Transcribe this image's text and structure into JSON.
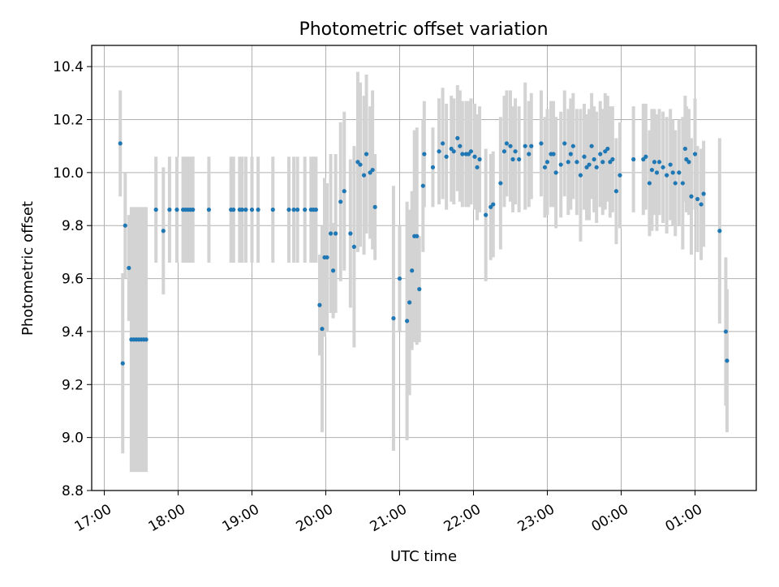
{
  "chart_data": {
    "type": "scatter",
    "title": "Photometric offset variation",
    "xlabel": "UTC time",
    "ylabel": "Photometric offset",
    "xlim": [
      "17:00",
      "01:50"
    ],
    "ylim": [
      8.8,
      10.48
    ],
    "x_ticks": [
      "17:00",
      "18:00",
      "19:00",
      "20:00",
      "21:00",
      "22:00",
      "23:00",
      "00:00",
      "01:00"
    ],
    "y_ticks": [
      "8.8",
      "9.0",
      "9.2",
      "9.4",
      "9.6",
      "9.8",
      "10.0",
      "10.2",
      "10.4"
    ],
    "grid": true,
    "point_color": "#1f77b4",
    "errorbar_color": "#d3d3d3",
    "series": [
      {
        "x": [
          "17:13",
          "17:15",
          "17:17",
          "17:20",
          "17:22",
          "17:24",
          "17:26",
          "17:28",
          "17:30",
          "17:32",
          "17:34",
          "17:42",
          "17:48",
          "17:53",
          "17:59",
          "18:04",
          "18:06",
          "18:08",
          "18:10",
          "18:12",
          "18:25",
          "18:43",
          "18:45",
          "18:50",
          "18:52",
          "18:55",
          "19:00",
          "19:05",
          "19:17",
          "19:30",
          "19:34",
          "19:37",
          "19:43",
          "19:48",
          "19:50",
          "19:52",
          "19:55",
          "19:57",
          "19:59",
          "20:01",
          "20:04",
          "20:06",
          "20:08",
          "20:12",
          "20:15",
          "20:20",
          "20:23",
          "20:26",
          "20:28",
          "20:31",
          "20:33",
          "20:36",
          "20:38",
          "20:40",
          "20:55",
          "21:00",
          "21:06",
          "21:08",
          "21:10",
          "21:12",
          "21:14",
          "21:16",
          "21:19",
          "21:20",
          "21:27",
          "21:32",
          "21:35",
          "21:38",
          "21:42",
          "21:44",
          "21:47",
          "21:49",
          "21:51",
          "21:54",
          "21:56",
          "21:58",
          "22:01",
          "22:03",
          "22:05",
          "22:10",
          "22:14",
          "22:16",
          "22:22",
          "22:25",
          "22:27",
          "22:30",
          "22:32",
          "22:34",
          "22:37",
          "22:42",
          "22:45",
          "22:47",
          "22:55",
          "22:58",
          "23:00",
          "23:03",
          "23:05",
          "23:07",
          "23:11",
          "23:14",
          "23:17",
          "23:19",
          "23:21",
          "23:24",
          "23:27",
          "23:30",
          "23:32",
          "23:34",
          "23:36",
          "23:38",
          "23:40",
          "23:43",
          "23:45",
          "23:47",
          "23:49",
          "23:51",
          "23:53",
          "23:56",
          "23:59",
          "00:10",
          "00:18",
          "00:20",
          "00:23",
          "00:25",
          "00:27",
          "00:29",
          "00:31",
          "00:34",
          "00:37",
          "00:40",
          "00:42",
          "00:44",
          "00:47",
          "00:50",
          "00:52",
          "00:53",
          "00:55",
          "00:57",
          "01:00",
          "01:02",
          "01:05",
          "01:07",
          "01:20",
          "01:25",
          "01:26"
        ],
        "y": [
          10.11,
          9.28,
          9.8,
          9.64,
          9.37,
          9.37,
          9.37,
          9.37,
          9.37,
          9.37,
          9.37,
          9.86,
          9.78,
          9.86,
          9.86,
          9.86,
          9.86,
          9.86,
          9.86,
          9.86,
          9.86,
          9.86,
          9.86,
          9.86,
          9.86,
          9.86,
          9.86,
          9.86,
          9.86,
          9.86,
          9.86,
          9.86,
          9.86,
          9.86,
          9.86,
          9.86,
          9.5,
          9.41,
          9.68,
          9.68,
          9.77,
          9.63,
          9.77,
          9.89,
          9.93,
          9.77,
          9.72,
          10.04,
          10.03,
          9.99,
          10.07,
          10.0,
          10.01,
          9.87,
          9.45,
          9.6,
          9.44,
          9.51,
          9.63,
          9.76,
          9.76,
          9.56,
          9.95,
          10.07,
          10.02,
          10.08,
          10.11,
          10.06,
          10.09,
          10.08,
          10.13,
          10.1,
          10.07,
          10.07,
          10.07,
          10.08,
          10.06,
          10.02,
          10.05,
          9.84,
          9.87,
          9.88,
          9.96,
          10.08,
          10.11,
          10.1,
          10.05,
          10.08,
          10.05,
          10.1,
          10.07,
          10.1,
          10.11,
          10.02,
          10.04,
          10.07,
          10.07,
          10.0,
          10.03,
          10.11,
          10.04,
          10.07,
          10.1,
          10.04,
          9.99,
          10.06,
          10.02,
          10.03,
          10.1,
          10.05,
          10.02,
          10.07,
          10.04,
          10.08,
          10.09,
          10.04,
          10.05,
          9.93,
          9.99,
          10.05,
          10.05,
          10.06,
          9.96,
          10.01,
          10.04,
          10.0,
          10.04,
          10.02,
          9.99,
          10.03,
          10.0,
          9.96,
          10.0,
          9.96,
          10.09,
          10.05,
          10.04,
          9.91,
          10.07,
          9.9,
          9.88,
          9.92,
          9.78,
          9.4,
          9.29
        ],
        "err": [
          0.2,
          0.34,
          0.2,
          0.2,
          0.5,
          0.5,
          0.5,
          0.5,
          0.5,
          0.5,
          0.5,
          0.2,
          0.24,
          0.2,
          0.2,
          0.2,
          0.2,
          0.2,
          0.2,
          0.2,
          0.2,
          0.2,
          0.2,
          0.2,
          0.2,
          0.2,
          0.2,
          0.2,
          0.2,
          0.2,
          0.2,
          0.2,
          0.2,
          0.2,
          0.2,
          0.2,
          0.19,
          0.39,
          0.3,
          0.28,
          0.3,
          0.18,
          0.3,
          0.3,
          0.3,
          0.28,
          0.38,
          0.34,
          0.31,
          0.3,
          0.3,
          0.25,
          0.3,
          0.2,
          0.5,
          0.2,
          0.45,
          0.35,
          0.3,
          0.4,
          0.41,
          0.2,
          0.25,
          0.2,
          0.15,
          0.2,
          0.21,
          0.2,
          0.2,
          0.2,
          0.2,
          0.21,
          0.2,
          0.2,
          0.2,
          0.2,
          0.2,
          0.2,
          0.2,
          0.25,
          0.2,
          0.2,
          0.25,
          0.21,
          0.2,
          0.21,
          0.2,
          0.2,
          0.2,
          0.24,
          0.2,
          0.2,
          0.2,
          0.19,
          0.2,
          0.2,
          0.2,
          0.21,
          0.2,
          0.2,
          0.2,
          0.21,
          0.2,
          0.2,
          0.25,
          0.2,
          0.2,
          0.21,
          0.2,
          0.2,
          0.21,
          0.2,
          0.2,
          0.22,
          0.2,
          0.21,
          0.2,
          0.2,
          0.2,
          0.2,
          0.21,
          0.2,
          0.2,
          0.23,
          0.2,
          0.22,
          0.2,
          0.21,
          0.22,
          0.21,
          0.2,
          0.2,
          0.2,
          0.25,
          0.2,
          0.2,
          0.2,
          0.22,
          0.21,
          0.2,
          0.21,
          0.2,
          0.35,
          0.28,
          0.27
        ]
      }
    ]
  }
}
